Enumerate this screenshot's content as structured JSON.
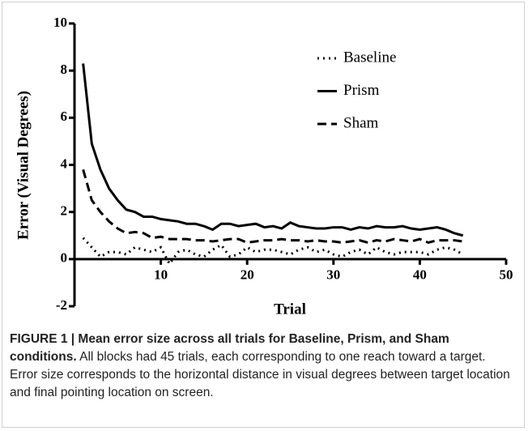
{
  "chart_data": {
    "type": "line",
    "x_label": "Trial",
    "y_label": "Error (Visual Degrees)",
    "x": [
      1,
      2,
      3,
      4,
      5,
      6,
      7,
      8,
      9,
      10,
      11,
      12,
      13,
      14,
      15,
      16,
      17,
      18,
      19,
      20,
      21,
      22,
      23,
      24,
      25,
      26,
      27,
      28,
      29,
      30,
      31,
      32,
      33,
      34,
      35,
      36,
      37,
      38,
      39,
      40,
      41,
      42,
      43,
      44,
      45
    ],
    "series": [
      {
        "name": "Baseline",
        "color": "#000000",
        "dash": "dotted",
        "values": [
          0.9,
          0.5,
          0.1,
          0.3,
          0.3,
          0.2,
          0.5,
          0.4,
          0.3,
          0.5,
          -0.2,
          0.3,
          0.4,
          0.2,
          0.1,
          0.4,
          0.6,
          0.1,
          0.2,
          0.5,
          0.3,
          0.4,
          0.4,
          0.3,
          0.2,
          0.4,
          0.5,
          0.3,
          0.4,
          0.2,
          0.1,
          0.3,
          0.4,
          0.2,
          0.5,
          0.3,
          0.2,
          0.3,
          0.3,
          0.3,
          0.2,
          0.4,
          0.5,
          0.4,
          0.2
        ]
      },
      {
        "name": "Prism",
        "color": "#000000",
        "dash": "solid",
        "values": [
          8.3,
          4.9,
          3.8,
          3.0,
          2.5,
          2.1,
          2.0,
          1.8,
          1.8,
          1.7,
          1.65,
          1.6,
          1.5,
          1.5,
          1.4,
          1.25,
          1.5,
          1.5,
          1.4,
          1.45,
          1.5,
          1.35,
          1.4,
          1.3,
          1.55,
          1.4,
          1.35,
          1.3,
          1.3,
          1.35,
          1.35,
          1.25,
          1.35,
          1.3,
          1.4,
          1.35,
          1.35,
          1.4,
          1.3,
          1.25,
          1.3,
          1.35,
          1.25,
          1.1,
          1.0
        ]
      },
      {
        "name": "Sham",
        "color": "#000000",
        "dash": "dashed",
        "values": [
          3.8,
          2.5,
          2.0,
          1.6,
          1.3,
          1.1,
          1.15,
          1.1,
          0.9,
          0.95,
          0.85,
          0.85,
          0.85,
          0.8,
          0.8,
          0.75,
          0.8,
          0.85,
          0.85,
          0.7,
          0.75,
          0.8,
          0.8,
          0.85,
          0.8,
          0.8,
          0.75,
          0.8,
          0.75,
          0.75,
          0.7,
          0.75,
          0.8,
          0.7,
          0.8,
          0.75,
          0.85,
          0.8,
          0.75,
          0.85,
          0.7,
          0.8,
          0.8,
          0.8,
          0.75
        ]
      }
    ],
    "xlim": [
      0,
      50
    ],
    "xticks": [
      10,
      20,
      30,
      40,
      50
    ],
    "ylim": [
      -2,
      10
    ],
    "yticks": [
      -2,
      0,
      2,
      4,
      6,
      8,
      10
    ],
    "grid": false,
    "legend": "upper right"
  },
  "caption": {
    "label": "FIGURE 1 | Mean error size across all trials for Baseline, Prism, and Sham conditions.",
    "text": "All blocks had 45 trials, each corresponding to one reach toward a target. Error size corresponds to the horizontal distance in visual degrees between target location and final pointing location on screen."
  }
}
